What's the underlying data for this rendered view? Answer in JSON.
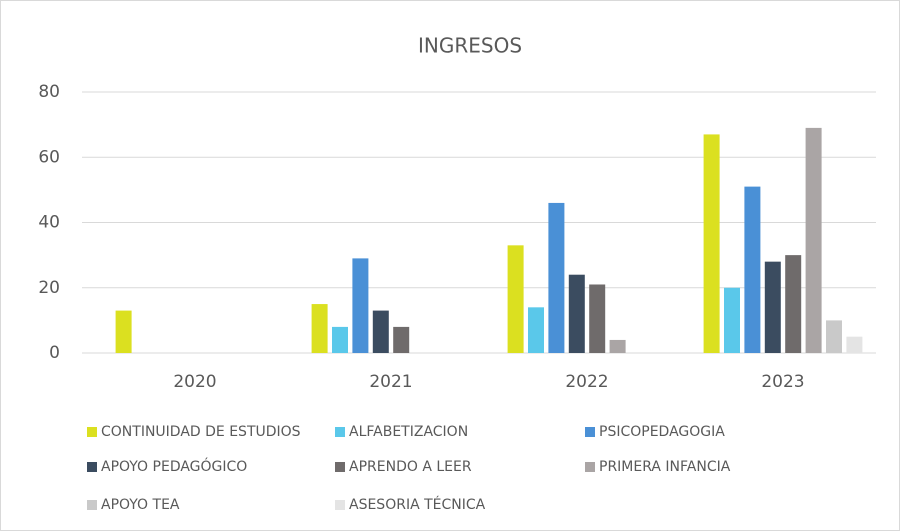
{
  "chart_data": {
    "type": "bar",
    "title": "INGRESOS",
    "categories": [
      "2020",
      "2021",
      "2022",
      "2023"
    ],
    "series": [
      {
        "name": "CONTINUIDAD DE ESTUDIOS",
        "color": "#dbe020",
        "values": [
          13,
          15,
          33,
          67
        ]
      },
      {
        "name": "ALFABETIZACION",
        "color": "#5ac8ea",
        "values": [
          0,
          8,
          14,
          20
        ]
      },
      {
        "name": "PSICOPEDAGOGIA",
        "color": "#4a90d6",
        "values": [
          0,
          29,
          46,
          51
        ]
      },
      {
        "name": "APOYO PEDAGÓGICO",
        "color": "#3b4c60",
        "values": [
          0,
          13,
          24,
          28
        ]
      },
      {
        "name": "APRENDO A LEER",
        "color": "#6f6b6b",
        "values": [
          0,
          8,
          21,
          30
        ]
      },
      {
        "name": "PRIMERA INFANCIA",
        "color": "#aaa5a5",
        "values": [
          0,
          0,
          4,
          69
        ]
      },
      {
        "name": "APOYO TEA",
        "color": "#c9c9c9",
        "values": [
          0,
          0,
          0,
          10
        ]
      },
      {
        "name": "ASESORIA TÉCNICA",
        "color": "#e4e4e4",
        "values": [
          0,
          0,
          0,
          5
        ]
      }
    ],
    "ylim": [
      0,
      80
    ],
    "yticks": [
      0,
      20,
      40,
      60,
      80
    ],
    "grid": true,
    "legend": "bottom"
  }
}
